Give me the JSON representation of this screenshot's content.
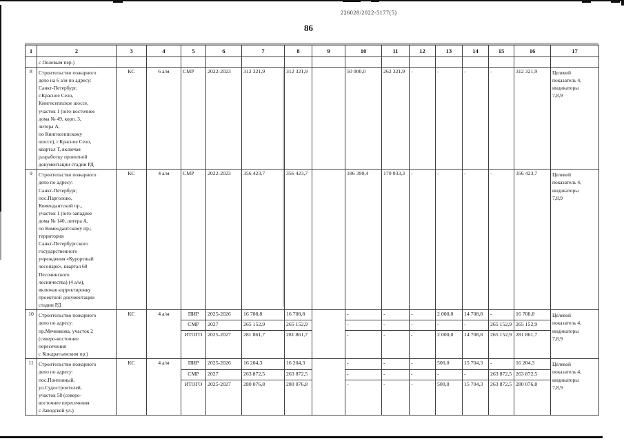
{
  "doc": {
    "ref": "226028/2022-5177(5)",
    "page": "86"
  },
  "table": {
    "col_headers": [
      "1",
      "2",
      "3",
      "4",
      "5",
      "6",
      "7",
      "8",
      "9",
      "10",
      "11",
      "12",
      "13",
      "14",
      "15",
      "16",
      "17"
    ],
    "continuation_row": {
      "c2": "с Полевым пер.)"
    },
    "rows": [
      {
        "num": "8",
        "address": "Строительство пожарного\nдепо на 6 а/м по адресу:\nСанкт-Петербург,\nг.Красное Село,\nКингисеппское шоссе,\nучасток 1 (юго-восточнее\nдома № 49, корп. 3,\nлитера А,\nпо Кингисеппскому\nшоссе), г.Красное Село,\nквартал Т, включая\nразработку проектной\nдокументации стадии РД",
        "customer": "КС",
        "capacity": "6 а/м",
        "target": "Целевой\nпоказатель 4,\nиндикаторы\n7,8,9",
        "lines": [
          {
            "stage": "СМР",
            "period": "2022-2023",
            "c7": "312 321,9",
            "c8": "312 321,9",
            "c10": "50 000,0",
            "c11": "262 321,9",
            "c12": "-",
            "c13": "-",
            "c14": "-",
            "c15": "-",
            "c16": "312 321,9"
          }
        ]
      },
      {
        "num": "9",
        "address": "Строительство пожарного\nдепо по адресу:\nСанкт-Петербург,\nпос.Парголово,\nКомендантский пр.,\nучасток 1 (юго-западнее\nдома № 140, литера А,\nпо Комендантскому пр.;\nтерритория\nСанкт-Петербургского\nгосударственного\nучреждения «Курортный\nлесопарк», квартал 68\nПесочинского\nлесничества) (4 а/м),\nвключая корректировку\nпроектной документации\nстадии РД",
        "customer": "КС",
        "capacity": "4 а/м",
        "target": "Целевой\nпоказатель 4,\nиндикаторы\n7,8,9",
        "lines": [
          {
            "stage": "СМР",
            "period": "2022-2023",
            "c7": "356 423,7",
            "c8": "356 423,7",
            "c10": "186 390,4",
            "c11": "170 033,3",
            "c12": "-",
            "c13": "-",
            "c14": "-",
            "c15": "-",
            "c16": "356 423,7"
          }
        ]
      },
      {
        "num": "10",
        "address": "Строительство пожарного\nдепо по адресу:\nпр.Мечникова, участок 2\n(северо-восточнее\nпересечения\nс Кондратьевским пр.)",
        "customer": "КС",
        "capacity": "4 а/м",
        "target": "Целевой\nпоказатель 4,\nиндикаторы\n7,8,9",
        "lines": [
          {
            "stage": "ПИР",
            "period": "2025-2026",
            "c7": "16 708,8",
            "c8": "16 708,8",
            "c10": "-",
            "c11": "-",
            "c12": "-",
            "c13": "2 000,0",
            "c14": "14 708,8",
            "c15": "-",
            "c16": "16 708,8"
          },
          {
            "stage": "СМР",
            "period": "2027",
            "c7": "265 152,9",
            "c8": "265 152,9",
            "c10": "-",
            "c11": "-",
            "c12": "-",
            "c13": "-",
            "c14": "-",
            "c15": "265 152,9",
            "c16": "265 152,9"
          },
          {
            "stage": "ИТОГО",
            "period": "2025-2027",
            "c7": "281 861,7",
            "c8": "281 861,7",
            "c10": "-",
            "c11": "-",
            "c12": "-",
            "c13": "2 000,0",
            "c14": "14 708,8",
            "c15": "265 152,9",
            "c16": "281 861,7"
          }
        ]
      },
      {
        "num": "11",
        "address": "Строительство пожарного\nдепо по адресу:\nпос.Понтонный,\nул.Судостроителей,\nучасток 58 (северо-\nвосточнее пересечения\nс Заводской ул.)",
        "customer": "КС",
        "capacity": "4 а/м",
        "target": "Целевой\nпоказатель 4,\nиндикаторы\n7,8,9",
        "lines": [
          {
            "stage": "ПИР",
            "period": "2025-2026",
            "c7": "16 204,3",
            "c8": "16 204,3",
            "c10": "-",
            "c11": "-",
            "c12": "-",
            "c13": "500,0",
            "c14": "15 704,3",
            "c15": "-",
            "c16": "16 204,3"
          },
          {
            "stage": "СМР",
            "period": "2027",
            "c7": "263 872,5",
            "c8": "263 872,5",
            "c10": "-",
            "c11": "-",
            "c12": "-",
            "c13": "-",
            "c14": "-",
            "c15": "263 872,5",
            "c16": "263 872,5"
          },
          {
            "stage": "ИТОГО",
            "period": "2025-2027",
            "c7": "280 076,8",
            "c8": "280 076,8",
            "c10": "-",
            "c11": "-",
            "c12": "-",
            "c13": "500,0",
            "c14": "15 704,3",
            "c15": "263 872,5",
            "c16": "280 076,8"
          }
        ]
      }
    ]
  }
}
